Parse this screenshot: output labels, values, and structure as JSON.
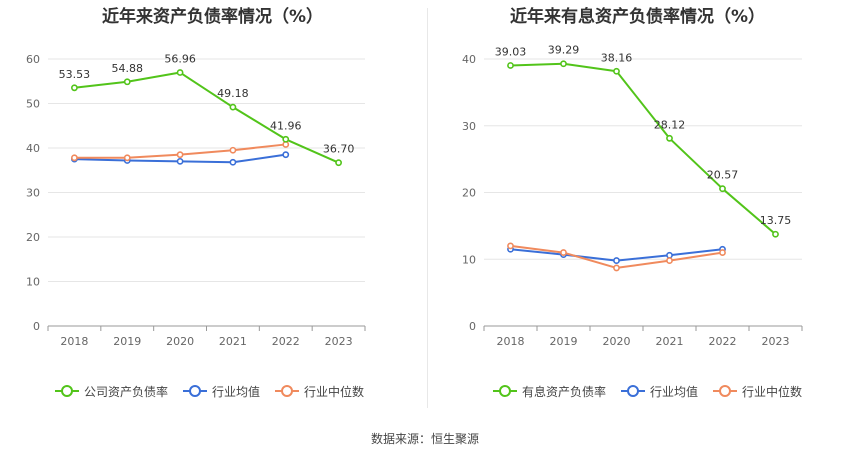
{
  "source": "数据来源：恒生聚源",
  "chart_data": [
    {
      "type": "line",
      "title": "近年来资产负债率情况（%）",
      "categories": [
        "2018",
        "2019",
        "2020",
        "2021",
        "2022",
        "2023"
      ],
      "ylim": [
        0,
        60
      ],
      "yticks": [
        0,
        10,
        20,
        30,
        40,
        50,
        60
      ],
      "grid": true,
      "legend_position": "bottom",
      "series": [
        {
          "name": "公司资产负债率",
          "color": "#52c41a",
          "values": [
            53.53,
            54.88,
            56.96,
            49.18,
            41.96,
            36.7
          ],
          "labels": [
            "53.53",
            "54.88",
            "56.96",
            "49.18",
            "41.96",
            "36.70"
          ]
        },
        {
          "name": "行业均值",
          "color": "#3a6fd8",
          "values": [
            37.5,
            37.2,
            37.0,
            36.8,
            38.5,
            null
          ]
        },
        {
          "name": "行业中位数",
          "color": "#f08a5d",
          "values": [
            37.8,
            37.8,
            38.5,
            39.5,
            40.8,
            null
          ]
        }
      ]
    },
    {
      "type": "line",
      "title": "近年来有息资产负债率情况（%）",
      "categories": [
        "2018",
        "2019",
        "2020",
        "2021",
        "2022",
        "2023"
      ],
      "ylim": [
        0,
        40
      ],
      "yticks": [
        0,
        10,
        20,
        30,
        40
      ],
      "grid": true,
      "legend_position": "bottom",
      "series": [
        {
          "name": "有息资产负债率",
          "color": "#52c41a",
          "values": [
            39.03,
            39.29,
            38.16,
            28.12,
            20.57,
            13.75
          ],
          "labels": [
            "39.03",
            "39.29",
            "38.16",
            "28.12",
            "20.57",
            "13.75"
          ]
        },
        {
          "name": "行业均值",
          "color": "#3a6fd8",
          "values": [
            11.5,
            10.7,
            9.8,
            10.6,
            11.5,
            null
          ]
        },
        {
          "name": "行业中位数",
          "color": "#f08a5d",
          "values": [
            12.0,
            11.0,
            8.7,
            9.8,
            11.0,
            null
          ]
        }
      ]
    }
  ]
}
